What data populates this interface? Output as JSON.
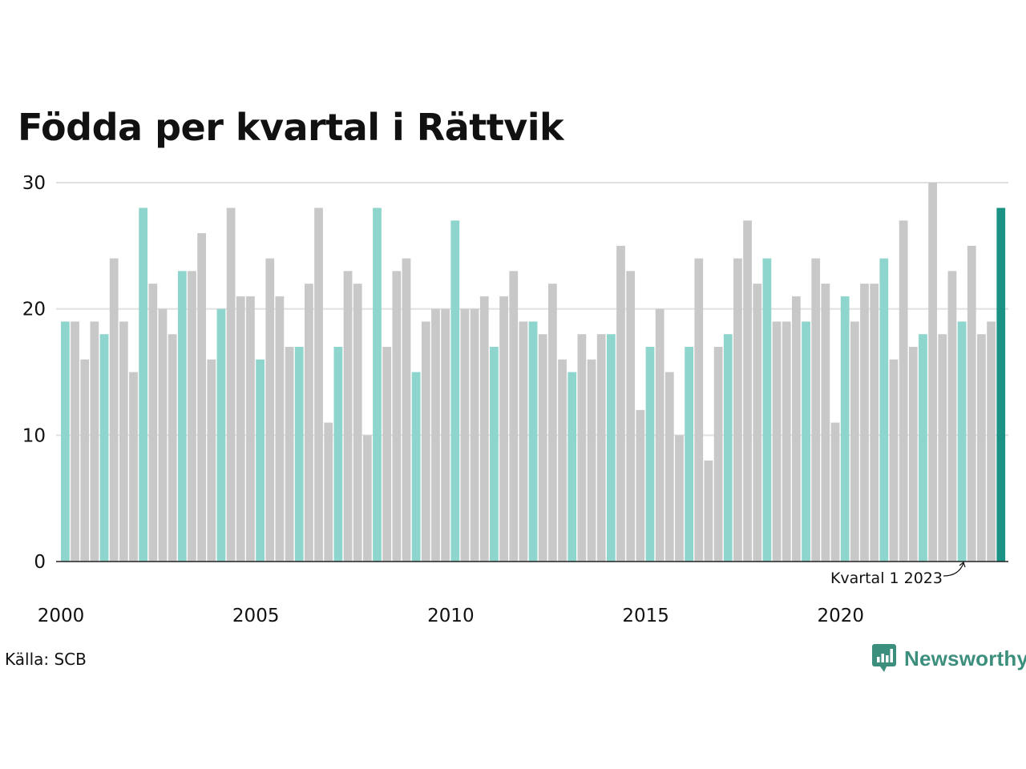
{
  "title": "Födda per kvartal i Rättvik",
  "source": "Källa: SCB",
  "brand": "Newsworthy",
  "annotation": "Kvartal 1 2023",
  "colors": {
    "quarter1": "#8dd5cd",
    "other": "#c8c8c8",
    "highlight": "#1a9385",
    "gridline": "#e0e0e0",
    "brand": "#3d8f7d"
  },
  "chart_data": {
    "type": "bar",
    "title": "Födda per kvartal i Rättvik",
    "xlabel": "",
    "ylabel": "",
    "ylim": [
      0,
      30
    ],
    "yticks": [
      0,
      10,
      20,
      30
    ],
    "xticks": [
      "2000",
      "2005",
      "2010",
      "2015",
      "2020"
    ],
    "grid": true,
    "start_year": 2000,
    "values": [
      19,
      19,
      16,
      19,
      18,
      24,
      19,
      15,
      28,
      22,
      20,
      18,
      23,
      23,
      26,
      16,
      20,
      28,
      21,
      21,
      16,
      24,
      21,
      17,
      17,
      22,
      28,
      11,
      17,
      23,
      22,
      10,
      28,
      17,
      23,
      24,
      15,
      19,
      20,
      20,
      27,
      20,
      20,
      21,
      17,
      21,
      23,
      19,
      19,
      18,
      22,
      16,
      15,
      18,
      16,
      18,
      18,
      25,
      23,
      12,
      17,
      20,
      15,
      10,
      17,
      24,
      8,
      17,
      18,
      24,
      27,
      22,
      24,
      19,
      19,
      21,
      19,
      24,
      22,
      11,
      21,
      19,
      22,
      22,
      24,
      16,
      27,
      17,
      18,
      30,
      18,
      23,
      19,
      25,
      18,
      19,
      28
    ],
    "highlight_label": "Kvartal 1 2023"
  }
}
